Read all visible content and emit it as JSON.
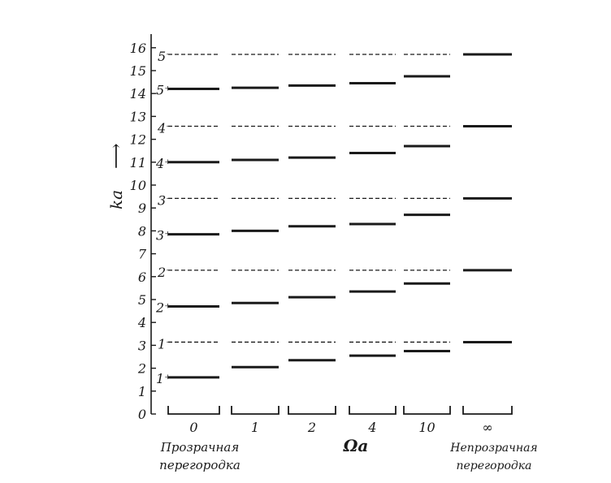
{
  "figure": {
    "ylabel": "ka",
    "ylabel_arrow": "⟶",
    "xlabel": "Ωa",
    "left_caption": [
      "Прозрачная",
      "перегородка"
    ],
    "right_caption": [
      "Непрозрачная",
      "перегородка"
    ]
  },
  "chart_data": {
    "type": "energy-levels",
    "ylim": [
      0,
      16.5
    ],
    "y_ticks": [
      "0",
      "1",
      "2",
      "3",
      "4",
      "5",
      "6",
      "7",
      "8",
      "9",
      "10",
      "11",
      "12",
      "13",
      "14",
      "15",
      "16"
    ],
    "columns": [
      {
        "label": "0",
        "levels": [
          1.6,
          4.7,
          7.85,
          11.0,
          14.2
        ]
      },
      {
        "label": "1",
        "levels": [
          2.05,
          4.85,
          8.0,
          11.1,
          14.25
        ]
      },
      {
        "label": "2",
        "levels": [
          2.35,
          5.1,
          8.2,
          11.2,
          14.35
        ]
      },
      {
        "label": "4",
        "levels": [
          2.55,
          5.35,
          8.3,
          11.4,
          14.45
        ]
      },
      {
        "label": "10",
        "levels": [
          2.75,
          5.7,
          8.7,
          11.7,
          14.75
        ]
      },
      {
        "label": "∞",
        "levels": [
          3.14,
          6.28,
          9.42,
          12.57,
          15.71
        ]
      }
    ],
    "odd_levels": [
      3.14,
      6.28,
      9.42,
      12.57,
      15.71
    ],
    "even_labels": [
      "1⁺",
      "2⁺",
      "3⁺",
      "4⁺",
      "5⁺"
    ],
    "odd_labels": [
      "1⁻",
      "2⁻",
      "3⁻",
      "4⁻",
      "5⁻"
    ]
  }
}
